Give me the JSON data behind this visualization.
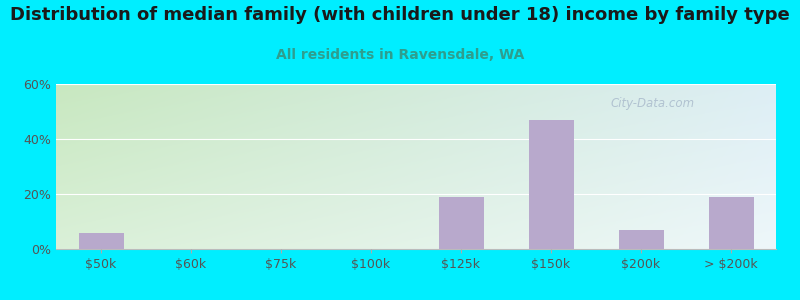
{
  "title": "Distribution of median family (with children under 18) income by family type",
  "subtitle": "All residents in Ravensdale, WA",
  "categories": [
    "$50k",
    "$60k",
    "$75k",
    "$100k",
    "$125k",
    "$150k",
    "$200k",
    "> $200k"
  ],
  "values": [
    6,
    0,
    0,
    0,
    19,
    47,
    7,
    19
  ],
  "bar_color": "#b8a9cc",
  "title_color": "#1a1a1a",
  "subtitle_color": "#2e9e8e",
  "background_color": "#00eeff",
  "plot_bg_color_topleft": "#c8e8c0",
  "plot_bg_color_topright": "#ddeef5",
  "plot_bg_color_bottomleft": "#daf0d8",
  "plot_bg_color_bottomright": "#eef7fa",
  "ylim": [
    0,
    60
  ],
  "yticks": [
    0,
    20,
    40,
    60
  ],
  "ytick_labels": [
    "0%",
    "20%",
    "40%",
    "60%"
  ],
  "title_fontsize": 13,
  "subtitle_fontsize": 10,
  "tick_fontsize": 9,
  "watermark": "City-Data.com"
}
